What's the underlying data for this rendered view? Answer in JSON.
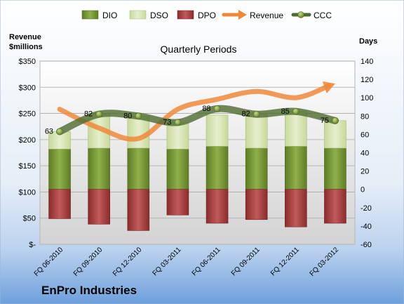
{
  "chart_data": {
    "type": "bar",
    "title": "Quarterly Periods",
    "left_axis_title": [
      "Revenue",
      "$millions"
    ],
    "right_axis_title": "Days",
    "categories": [
      "FQ 06-2010",
      "FQ 09-2010",
      "FQ 12-2010",
      "FQ 03-2011",
      "FQ 06-2011",
      "FQ 09-2011",
      "FQ 12-2011",
      "FQ 03-2012"
    ],
    "left_axis": {
      "min": 0,
      "max": 350,
      "step": 50,
      "tick_labels": [
        "$-",
        "$50",
        "$100",
        "$150",
        "$200",
        "$250",
        "$300",
        "$350"
      ]
    },
    "right_axis": {
      "min": -60,
      "max": 140,
      "step": 20,
      "tick_labels": [
        "-60",
        "-40",
        "-20",
        "0",
        "20",
        "40",
        "60",
        "80",
        "100",
        "120",
        "140"
      ]
    },
    "grid": true,
    "legend_position": "top",
    "series": [
      {
        "name": "DIO",
        "type": "stacked-bar",
        "axis": "right",
        "color": "#7a9a3a",
        "values": [
          44,
          45,
          45,
          44,
          47,
          45,
          47,
          45
        ]
      },
      {
        "name": "DSO",
        "type": "stacked-bar",
        "axis": "right",
        "color": "#d7e4b3",
        "values": [
          19,
          37,
          35,
          29,
          34,
          37,
          38,
          30
        ]
      },
      {
        "name": "DPO",
        "type": "bar-negative",
        "axis": "right",
        "color": "#9e3b3b",
        "values": [
          -32,
          -38,
          -45,
          -28,
          -37,
          -33,
          -41,
          -37
        ]
      },
      {
        "name": "Revenue",
        "type": "line",
        "axis": "left",
        "color": "#f0883a",
        "values": [
          258,
          222,
          202,
          258,
          277,
          292,
          280,
          307
        ]
      },
      {
        "name": "CCC",
        "type": "line",
        "axis": "right",
        "color": "#4d6b2e",
        "values": [
          63,
          82,
          80,
          73,
          88,
          82,
          85,
          75
        ]
      }
    ],
    "data_labels": [
      "63",
      "82",
      "80",
      "73",
      "88",
      "82",
      "85",
      "75"
    ]
  },
  "company_name": "EnPro Industries"
}
